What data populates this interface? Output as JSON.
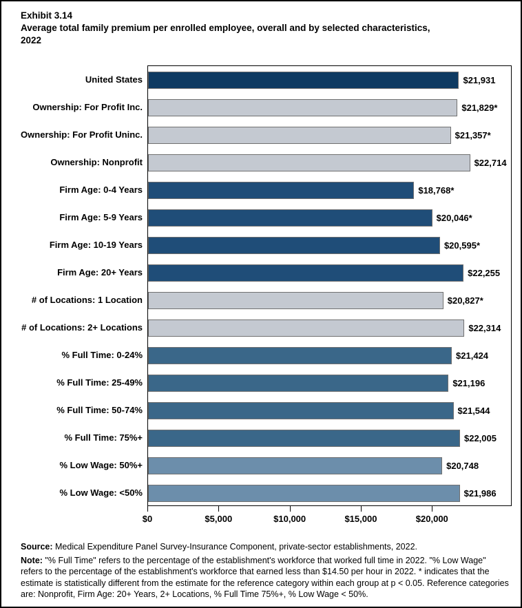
{
  "header": {
    "exhibit": "Exhibit 3.14",
    "title": "Average total family premium per enrolled employee, overall and by selected characteristics, 2022"
  },
  "chart_data": {
    "type": "bar",
    "orientation": "horizontal",
    "title": "Exhibit 3.14",
    "subtitle": "Average total family premium per enrolled employee, overall and by selected characteristics, 2022",
    "xlabel": "",
    "ylabel": "",
    "xlim": [
      0,
      25600
    ],
    "grid": false,
    "legend": false,
    "x_ticks": [
      {
        "value": 0,
        "label": "$0"
      },
      {
        "value": 5000,
        "label": "$5,000"
      },
      {
        "value": 10000,
        "label": "$10,000"
      },
      {
        "value": 15000,
        "label": "$15,000"
      },
      {
        "value": 20000,
        "label": "$20,000"
      }
    ],
    "rows": [
      {
        "category": "United States",
        "value": 21931,
        "label": "$21,931",
        "color_key": "united_states"
      },
      {
        "category": "Ownership: For Profit Inc.",
        "value": 21829,
        "label": "$21,829*",
        "color_key": "ownership_and_locations"
      },
      {
        "category": "Ownership: For Profit Uninc.",
        "value": 21357,
        "label": "$21,357*",
        "color_key": "ownership_and_locations"
      },
      {
        "category": "Ownership: Nonprofit",
        "value": 22714,
        "label": "$22,714",
        "color_key": "ownership_and_locations"
      },
      {
        "category": "Firm Age: 0-4 Years",
        "value": 18768,
        "label": "$18,768*",
        "color_key": "firm_age"
      },
      {
        "category": "Firm Age: 5-9 Years",
        "value": 20046,
        "label": "$20,046*",
        "color_key": "firm_age"
      },
      {
        "category": "Firm Age: 10-19 Years",
        "value": 20595,
        "label": "$20,595*",
        "color_key": "firm_age"
      },
      {
        "category": "Firm Age: 20+ Years",
        "value": 22255,
        "label": "$22,255",
        "color_key": "firm_age"
      },
      {
        "category": "# of Locations: 1 Location",
        "value": 20827,
        "label": "$20,827*",
        "color_key": "ownership_and_locations"
      },
      {
        "category": "# of Locations: 2+ Locations",
        "value": 22314,
        "label": "$22,314",
        "color_key": "ownership_and_locations"
      },
      {
        "category": "% Full Time: 0-24%",
        "value": 21424,
        "label": "$21,424",
        "color_key": "full_time"
      },
      {
        "category": "% Full Time: 25-49%",
        "value": 21196,
        "label": "$21,196",
        "color_key": "full_time"
      },
      {
        "category": "% Full Time: 50-74%",
        "value": 21544,
        "label": "$21,544",
        "color_key": "full_time"
      },
      {
        "category": "% Full Time: 75%+",
        "value": 22005,
        "label": "$22,005",
        "color_key": "full_time"
      },
      {
        "category": "% Low Wage: 50%+",
        "value": 20748,
        "label": "$20,748",
        "color_key": "low_wage"
      },
      {
        "category": "% Low Wage: <50%",
        "value": 21986,
        "label": "$21,986",
        "color_key": "low_wage"
      }
    ]
  },
  "palette": {
    "united_states": "#0e3a62",
    "ownership_and_locations": "#c4c9d1",
    "firm_age": "#1f4d78",
    "full_time": "#3a6789",
    "low_wage": "#6c8eab",
    "bar_border": "#707070",
    "axis": "#000000"
  },
  "footer": {
    "source_label": "Source:",
    "source_text": " Medical Expenditure Panel Survey-Insurance Component, private-sector establishments, 2022.",
    "note_label": "Note:",
    "note_text": " \"% Full Time\" refers to the percentage of the establishment's workforce that worked full time in 2022. \"% Low Wage\" refers to the percentage of the establishment's workforce that earned less than $14.50 per hour in 2022. * indicates that the estimate is statistically different from the estimate for the reference category within each group at p < 0.05.  Reference categories are: Nonprofit, Firm Age: 20+ Years, 2+ Locations, % Full Time 75%+, % Low Wage < 50%."
  }
}
